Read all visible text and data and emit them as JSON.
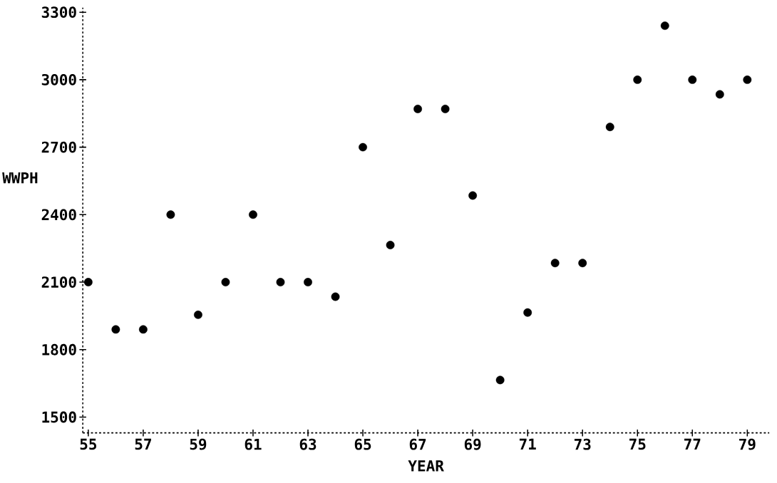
{
  "chart_data": {
    "type": "scatter",
    "xlabel": "YEAR",
    "ylabel": "WWPH",
    "x": [
      55,
      56,
      57,
      58,
      59,
      60,
      61,
      62,
      63,
      64,
      65,
      66,
      67,
      68,
      69,
      70,
      71,
      72,
      73,
      74,
      75,
      76,
      77,
      78,
      79
    ],
    "values": [
      2100,
      1890,
      1890,
      2400,
      1955,
      2100,
      2400,
      2100,
      2100,
      2035,
      2700,
      2265,
      2870,
      2870,
      2485,
      1665,
      1965,
      2185,
      2185,
      2790,
      3000,
      3240,
      3000,
      2935,
      3000
    ],
    "color": "#000000",
    "grid": false,
    "xlim": [
      54.8,
      79.8
    ],
    "xticks": [
      55,
      57,
      59,
      61,
      63,
      65,
      67,
      69,
      71,
      73,
      75,
      77,
      79
    ],
    "ylim": [
      1430,
      3320
    ],
    "yticks": [
      1500,
      1800,
      2100,
      2400,
      2700,
      3000,
      3300
    ]
  }
}
